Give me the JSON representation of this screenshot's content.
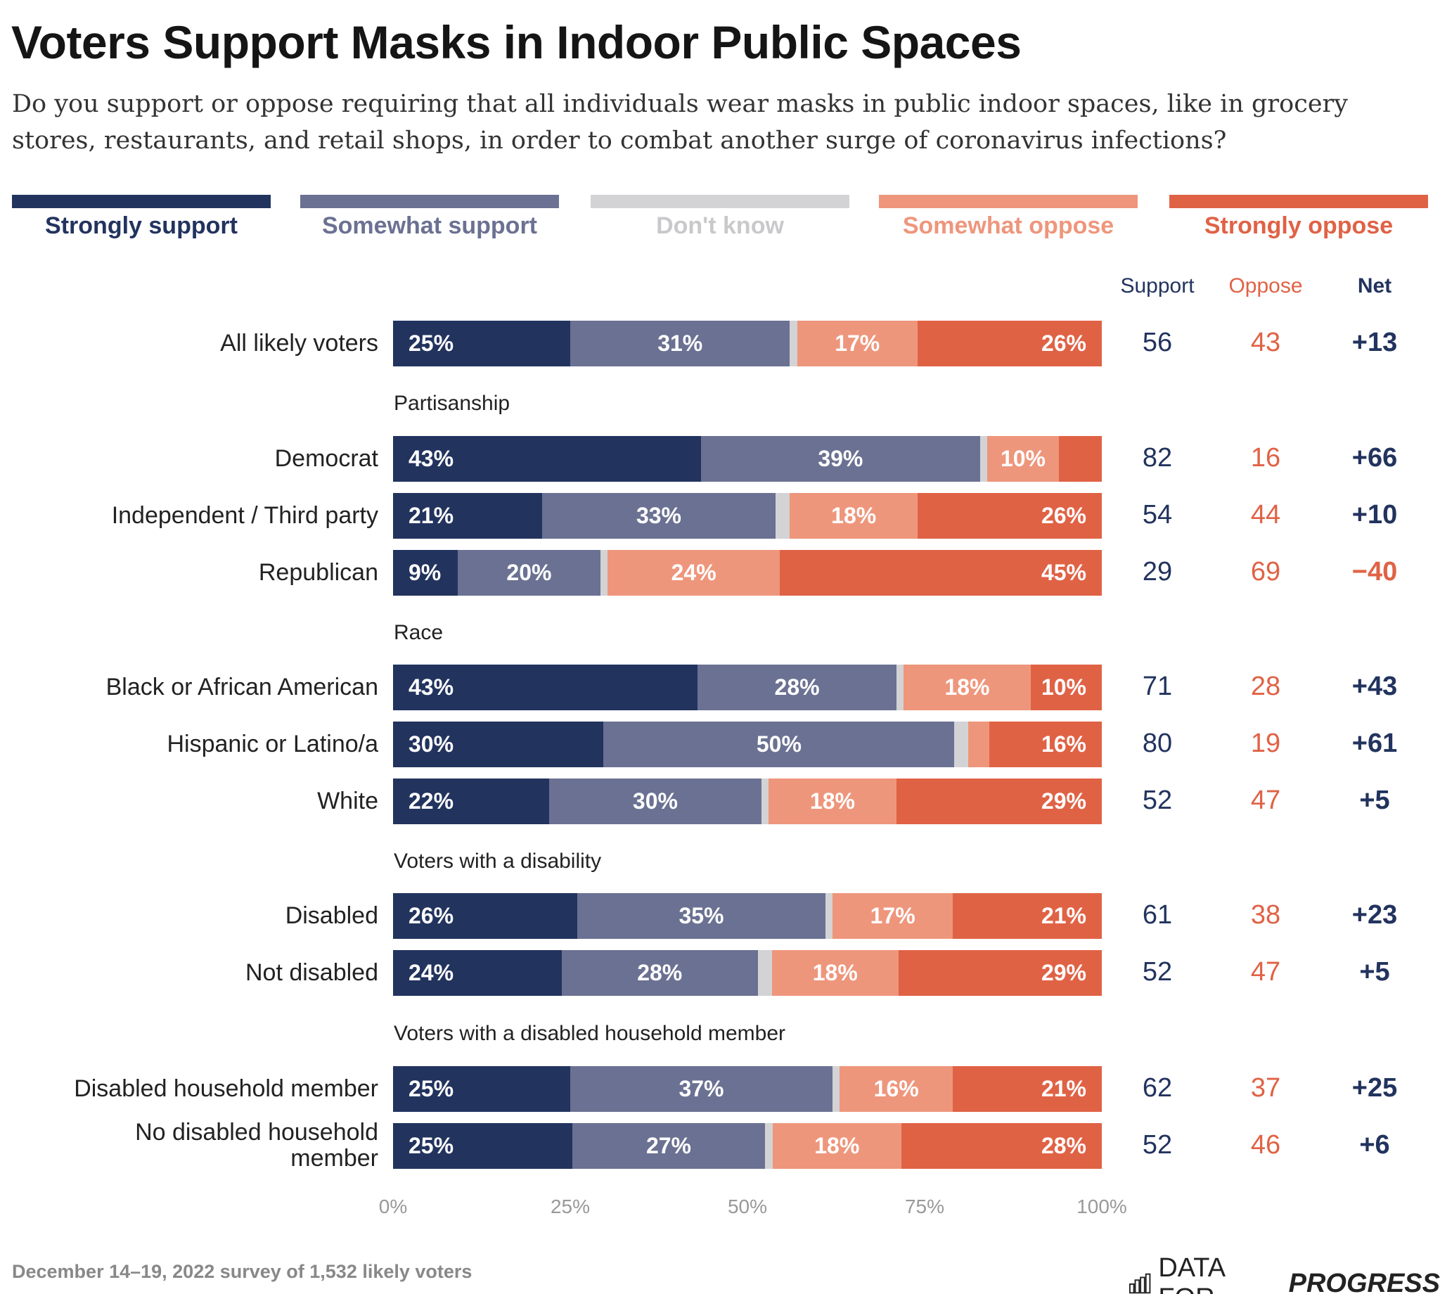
{
  "title": "Voters Support Masks in Indoor Public Spaces",
  "subtitle": "Do you support or oppose requiring that all individuals wear masks in public indoor spaces, like in grocery stores, restaurants, and retail shops, in order to combat another surge of coronavirus infections?",
  "footnote": "December 14–19, 2022 survey of 1,532 likely voters",
  "logo": {
    "light": "DATA FOR",
    "bold": "PROGRESS"
  },
  "colors": {
    "strongly_support": "#22335e",
    "somewhat_support": "#6b7192",
    "dont_know": "#d3d3d6",
    "somewhat_oppose": "#ee967c",
    "strongly_oppose": "#e06245",
    "net_positive": "#22335e",
    "net_negative": "#e06245"
  },
  "chart_data": {
    "type": "bar",
    "stacked": true,
    "orientation": "horizontal",
    "legend": [
      "Strongly support",
      "Somewhat support",
      "Don't know",
      "Somewhat oppose",
      "Strongly oppose"
    ],
    "legend_placement": "top",
    "columns": [
      "Support",
      "Oppose",
      "Net"
    ],
    "xticks": [
      "0%",
      "25%",
      "50%",
      "75%",
      "100%"
    ],
    "xlim": [
      0,
      100
    ],
    "groups": [
      {
        "title": null,
        "rows": [
          {
            "label": "All likely voters",
            "values": [
              25,
              31,
              1,
              17,
              26
            ],
            "labels": [
              "25%",
              "31%",
              null,
              "17%",
              "26%"
            ],
            "support": "56",
            "oppose": "43",
            "net": "+13"
          }
        ]
      },
      {
        "title": "Partisanship",
        "rows": [
          {
            "label": "Democrat",
            "values": [
              43,
              39,
              1,
              10,
              6
            ],
            "labels": [
              "43%",
              "39%",
              null,
              "10%",
              null
            ],
            "support": "82",
            "oppose": "16",
            "net": "+66"
          },
          {
            "label": "Independent / Third party",
            "values": [
              21,
              33,
              2,
              18,
              26
            ],
            "labels": [
              "21%",
              "33%",
              null,
              "18%",
              "26%"
            ],
            "support": "54",
            "oppose": "44",
            "net": "+10"
          },
          {
            "label": "Republican",
            "values": [
              9,
              20,
              1,
              24,
              45
            ],
            "labels": [
              "9%",
              "20%",
              null,
              "24%",
              "45%"
            ],
            "support": "29",
            "oppose": "69",
            "net": "−40"
          }
        ]
      },
      {
        "title": "Race",
        "rows": [
          {
            "label": "Black or African American",
            "values": [
              43,
              28,
              1,
              18,
              10
            ],
            "labels": [
              "43%",
              "28%",
              null,
              "18%",
              "10%"
            ],
            "support": "71",
            "oppose": "28",
            "net": "+43"
          },
          {
            "label": "Hispanic or Latino/a",
            "values": [
              30,
              50,
              2,
              3,
              16
            ],
            "labels": [
              "30%",
              "50%",
              null,
              null,
              "16%"
            ],
            "support": "80",
            "oppose": "19",
            "net": "+61"
          },
          {
            "label": "White",
            "values": [
              22,
              30,
              1,
              18,
              29
            ],
            "labels": [
              "22%",
              "30%",
              null,
              "18%",
              "29%"
            ],
            "support": "52",
            "oppose": "47",
            "net": "+5"
          }
        ]
      },
      {
        "title": "Voters with a disability",
        "rows": [
          {
            "label": "Disabled",
            "values": [
              26,
              35,
              1,
              17,
              21
            ],
            "labels": [
              "26%",
              "35%",
              null,
              "17%",
              "21%"
            ],
            "support": "61",
            "oppose": "38",
            "net": "+23"
          },
          {
            "label": "Not disabled",
            "values": [
              24,
              28,
              2,
              18,
              29
            ],
            "labels": [
              "24%",
              "28%",
              null,
              "18%",
              "29%"
            ],
            "support": "52",
            "oppose": "47",
            "net": "+5"
          }
        ]
      },
      {
        "title": "Voters with a disabled household member",
        "rows": [
          {
            "label": "Disabled household member",
            "values": [
              25,
              37,
              1,
              16,
              21
            ],
            "labels": [
              "25%",
              "37%",
              null,
              "16%",
              "21%"
            ],
            "support": "62",
            "oppose": "37",
            "net": "+25"
          },
          {
            "label": "No disabled household member",
            "values": [
              25,
              27,
              1,
              18,
              28
            ],
            "labels": [
              "25%",
              "27%",
              null,
              "18%",
              "28%"
            ],
            "support": "52",
            "oppose": "46",
            "net": "+6"
          }
        ]
      }
    ]
  }
}
